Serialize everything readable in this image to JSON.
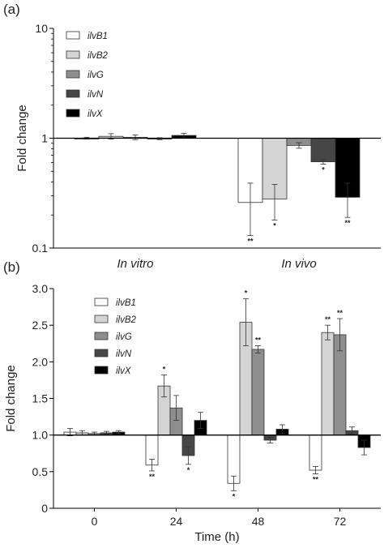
{
  "figure": {
    "panel_a_label": "(a)",
    "panel_b_label": "(b)"
  },
  "chart_data": [
    {
      "type": "bar",
      "panel": "(a)",
      "yscale": "log",
      "ylim": [
        0.1,
        10
      ],
      "yticks": [
        0.1,
        1,
        10
      ],
      "ytick_labels": [
        "0.1",
        "1",
        "10"
      ],
      "baseline": 1,
      "ylabel": "Fold change",
      "xlabel": "",
      "categories": [
        "In vitro",
        "In vivo"
      ],
      "legend_position": "top-left",
      "series": [
        {
          "name": "ilvB1",
          "color": "#ffffff",
          "values": [
            1.0,
            0.26
          ],
          "err": [
            0.02,
            0.13
          ],
          "sig": [
            "",
            "**"
          ]
        },
        {
          "name": "ilvB2",
          "color": "#d4d4d4",
          "values": [
            1.04,
            0.28
          ],
          "err": [
            0.06,
            0.1
          ],
          "sig": [
            "",
            "*"
          ]
        },
        {
          "name": "ilvG",
          "color": "#8e8e8e",
          "values": [
            1.02,
            0.86
          ],
          "err": [
            0.05,
            0.05
          ],
          "sig": [
            "",
            ""
          ]
        },
        {
          "name": "ilvN",
          "color": "#464646",
          "values": [
            0.99,
            0.61
          ],
          "err": [
            0.02,
            0.03
          ],
          "sig": [
            "",
            "*"
          ]
        },
        {
          "name": "ilvX",
          "color": "#000000",
          "values": [
            1.06,
            0.29
          ],
          "err": [
            0.05,
            0.1
          ],
          "sig": [
            "",
            "**"
          ]
        }
      ]
    },
    {
      "type": "bar",
      "panel": "(b)",
      "yscale": "linear",
      "ylim": [
        0,
        3
      ],
      "yticks": [
        0,
        0.5,
        1,
        1.5,
        2,
        2.5,
        3
      ],
      "ytick_labels": [
        "0",
        "0.5",
        "1.0",
        "1.5",
        "2.0",
        "2.5",
        "3.0"
      ],
      "baseline": 1,
      "ylabel": "Fold change",
      "xlabel": "Time (h)",
      "categories": [
        "0",
        "24",
        "48",
        "72"
      ],
      "legend_position": "top-left",
      "series": [
        {
          "name": "ilvB1",
          "color": "#ffffff",
          "values": [
            1.04,
            0.59,
            0.34,
            0.52
          ],
          "err": [
            0.05,
            0.08,
            0.1,
            0.05
          ],
          "sig": [
            "",
            "**",
            "*",
            "**"
          ]
        },
        {
          "name": "ilvB2",
          "color": "#d4d4d4",
          "values": [
            1.03,
            1.67,
            2.54,
            2.4
          ],
          "err": [
            0.03,
            0.15,
            0.32,
            0.1
          ],
          "sig": [
            "",
            "*",
            "*",
            "**"
          ]
        },
        {
          "name": "ilvG",
          "color": "#8e8e8e",
          "values": [
            1.02,
            1.37,
            2.17,
            2.37
          ],
          "err": [
            0.02,
            0.17,
            0.05,
            0.22
          ],
          "sig": [
            "",
            "",
            "**",
            "**"
          ]
        },
        {
          "name": "ilvN",
          "color": "#464646",
          "values": [
            1.03,
            0.72,
            0.93,
            1.06
          ],
          "err": [
            0.02,
            0.12,
            0.04,
            0.05
          ],
          "sig": [
            "",
            "*",
            "",
            ""
          ]
        },
        {
          "name": "ilvX",
          "color": "#000000",
          "values": [
            1.04,
            1.2,
            1.08,
            0.83
          ],
          "err": [
            0.02,
            0.11,
            0.06,
            0.1
          ],
          "sig": [
            "",
            "",
            "",
            ""
          ]
        }
      ]
    }
  ]
}
